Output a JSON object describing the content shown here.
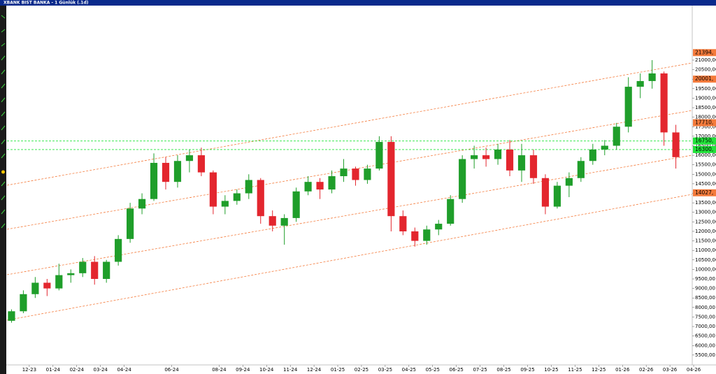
{
  "chart_data": {
    "type": "candlestick",
    "title": "XBANK BIST BANKA - 1 Günlük (.1d)",
    "x": [
      -0.75,
      -0.25,
      0.25,
      0.75,
      1.25,
      1.75,
      2.25,
      2.75,
      3.25,
      3.75,
      4.25,
      4.75,
      5.25,
      5.75,
      6.25,
      6.75,
      7.25,
      7.75,
      8.25,
      8.75,
      9.25,
      9.75,
      10.25,
      10.75,
      11.25,
      11.75,
      12.25,
      12.75,
      13.25,
      13.75,
      14.25,
      14.75,
      15.25,
      15.75,
      16.25,
      16.75,
      17.25,
      17.75,
      18.25,
      18.75,
      19.25,
      19.75,
      20.25,
      20.75,
      21.25,
      21.75,
      22.25,
      22.75,
      23.25,
      23.75,
      24.25,
      24.75,
      25.25,
      25.75,
      26.25,
      26.75,
      27.25
    ],
    "open": [
      7300,
      7800,
      8700,
      9300,
      9000,
      9700,
      9800,
      10400,
      9500,
      10400,
      11600,
      13200,
      13700,
      15600,
      14600,
      15700,
      16000,
      15100,
      13300,
      13600,
      14000,
      14700,
      12800,
      12300,
      12700,
      14100,
      14600,
      14200,
      14900,
      15300,
      14700,
      15300,
      16700,
      12800,
      12000,
      11500,
      12100,
      12400,
      13700,
      15800,
      16000,
      15800,
      16300,
      15200,
      16000,
      14800,
      13300,
      14400,
      14800,
      15700,
      16300,
      16500,
      17500,
      19600,
      19900,
      20300,
      17200
    ],
    "high": [
      7900,
      8900,
      9600,
      9500,
      10300,
      10000,
      10600,
      10700,
      10500,
      11800,
      13500,
      14000,
      16100,
      15900,
      16000,
      16300,
      16400,
      15200,
      13900,
      14200,
      15000,
      14800,
      13100,
      12900,
      14300,
      14900,
      14800,
      15200,
      15800,
      15400,
      15500,
      17000,
      17000,
      13100,
      12200,
      12300,
      12600,
      13900,
      16000,
      16500,
      16400,
      16600,
      16800,
      16600,
      16300,
      15000,
      14600,
      15100,
      15900,
      16600,
      16800,
      17700,
      20100,
      20300,
      21000,
      20400,
      17600
    ],
    "low": [
      7200,
      7700,
      8500,
      8600,
      8900,
      9300,
      9600,
      9200,
      9300,
      10200,
      11400,
      12900,
      13600,
      14200,
      14300,
      15100,
      14900,
      12900,
      12900,
      13400,
      13700,
      12400,
      12000,
      11300,
      12500,
      13900,
      13700,
      14000,
      14600,
      14400,
      14500,
      15200,
      12000,
      11800,
      11200,
      11300,
      11800,
      12300,
      13500,
      15300,
      15400,
      15500,
      14900,
      14600,
      14500,
      12900,
      13200,
      13800,
      14600,
      15500,
      16000,
      16300,
      17200,
      19000,
      19500,
      16500,
      15300
    ],
    "close": [
      7800,
      8700,
      9300,
      9000,
      9700,
      9800,
      10400,
      9500,
      10400,
      11600,
      13200,
      13700,
      15600,
      14600,
      15700,
      16000,
      15100,
      13300,
      13600,
      14000,
      14700,
      12800,
      12300,
      12700,
      14100,
      14600,
      14200,
      14900,
      15300,
      14700,
      15300,
      16700,
      12800,
      12000,
      11500,
      12100,
      12400,
      13700,
      15800,
      16000,
      15800,
      16300,
      15200,
      16000,
      14800,
      13300,
      14400,
      14800,
      15700,
      16300,
      16500,
      17500,
      19600,
      19900,
      20300,
      17200,
      15900
    ],
    "up_color": "#1f9e2a",
    "down_color": "#e3262e",
    "xlim": [
      -0.94,
      27.94
    ],
    "xticks": [
      {
        "value": 0,
        "label": "12-23"
      },
      {
        "value": 1,
        "label": "01-24"
      },
      {
        "value": 2,
        "label": "02-24"
      },
      {
        "value": 3,
        "label": "03-24"
      },
      {
        "value": 4,
        "label": "04-24"
      },
      {
        "value": 6,
        "label": "06-24"
      },
      {
        "value": 8,
        "label": "08-24"
      },
      {
        "value": 9,
        "label": "09-24"
      },
      {
        "value": 10,
        "label": "10-24"
      },
      {
        "value": 11,
        "label": "11-24"
      },
      {
        "value": 12,
        "label": "12-24"
      },
      {
        "value": 13,
        "label": "01-25"
      },
      {
        "value": 14,
        "label": "02-25"
      },
      {
        "value": 15,
        "label": "03-25"
      },
      {
        "value": 16,
        "label": "04-25"
      },
      {
        "value": 17,
        "label": "05-25"
      },
      {
        "value": 18,
        "label": "06-25"
      },
      {
        "value": 19,
        "label": "07-25"
      },
      {
        "value": 20,
        "label": "08-25"
      },
      {
        "value": 21,
        "label": "09-25"
      },
      {
        "value": 22,
        "label": "10-25"
      },
      {
        "value": 23,
        "label": "11-25"
      },
      {
        "value": 24,
        "label": "12-25"
      },
      {
        "value": 25,
        "label": "01-26"
      },
      {
        "value": 26,
        "label": "02-26"
      },
      {
        "value": 27,
        "label": "03-26"
      },
      {
        "value": 28,
        "label": "04-26"
      }
    ],
    "ylim": [
      4981,
      23792
    ],
    "yticks": [
      {
        "value": 5500,
        "label": "5500,00"
      },
      {
        "value": 6000,
        "label": "6000,00"
      },
      {
        "value": 6500,
        "label": "6500,00"
      },
      {
        "value": 7000,
        "label": "7000,00"
      },
      {
        "value": 7500,
        "label": "7500,00"
      },
      {
        "value": 8000,
        "label": "8000,00"
      },
      {
        "value": 8500,
        "label": "8500,00"
      },
      {
        "value": 9000,
        "label": "9000,00"
      },
      {
        "value": 9500,
        "label": "9500,00"
      },
      {
        "value": 10000,
        "label": "10000,00"
      },
      {
        "value": 10500,
        "label": "10500,00"
      },
      {
        "value": 11000,
        "label": "11000,00"
      },
      {
        "value": 11500,
        "label": "11500,00"
      },
      {
        "value": 12000,
        "label": "12000,00"
      },
      {
        "value": 12500,
        "label": "12500,00"
      },
      {
        "value": 13000,
        "label": "13000,00"
      },
      {
        "value": 13500,
        "label": "13500,00"
      },
      {
        "value": 14000,
        "label": "14000,00"
      },
      {
        "value": 14500,
        "label": "14500,00"
      },
      {
        "value": 15000,
        "label": "15000,00"
      },
      {
        "value": 15500,
        "label": "15500,00"
      },
      {
        "value": 16000,
        "label": "16000,00"
      },
      {
        "value": 16500,
        "label": "16500,00"
      },
      {
        "value": 17000,
        "label": "17000,00"
      },
      {
        "value": 17500,
        "label": "17500,00"
      },
      {
        "value": 18000,
        "label": "18000,00"
      },
      {
        "value": 18500,
        "label": "18500,00"
      },
      {
        "value": 19000,
        "label": "19000,00"
      },
      {
        "value": 19500,
        "label": "19500,00"
      },
      {
        "value": 20000,
        "label": "20000,00"
      },
      {
        "value": 20500,
        "label": "20500,00"
      },
      {
        "value": 21000,
        "label": "21000,00"
      }
    ],
    "price_markers": [
      {
        "value": 21394,
        "label": "21394,",
        "color": "#f47b3c",
        "line": false
      },
      {
        "value": 20001,
        "label": "20001,",
        "color": "#f47b3c",
        "line": false
      },
      {
        "value": 17710,
        "label": "17710,",
        "color": "#f47b3c",
        "line": false
      },
      {
        "value": 16750,
        "label": "16750,",
        "color": "#22e33a",
        "line": true
      },
      {
        "value": 16300,
        "label": "16300,",
        "color": "#22e33a",
        "line": true
      },
      {
        "value": 14027,
        "label": "14027,",
        "color": "#f47b3c",
        "line": false
      }
    ],
    "trendline_color": "#f47b3c",
    "trendlines": [
      {
        "x": [
          -0.94,
          27.94
        ],
        "y": [
          14424,
          20853
        ]
      },
      {
        "x": [
          -0.94,
          27.94
        ],
        "y": [
          12109,
          18355
        ]
      },
      {
        "x": [
          -0.94,
          27.94
        ],
        "y": [
          9721,
          16003
        ]
      },
      {
        "x": [
          -0.94,
          27.94
        ],
        "y": [
          7333,
          13946
        ]
      }
    ]
  }
}
